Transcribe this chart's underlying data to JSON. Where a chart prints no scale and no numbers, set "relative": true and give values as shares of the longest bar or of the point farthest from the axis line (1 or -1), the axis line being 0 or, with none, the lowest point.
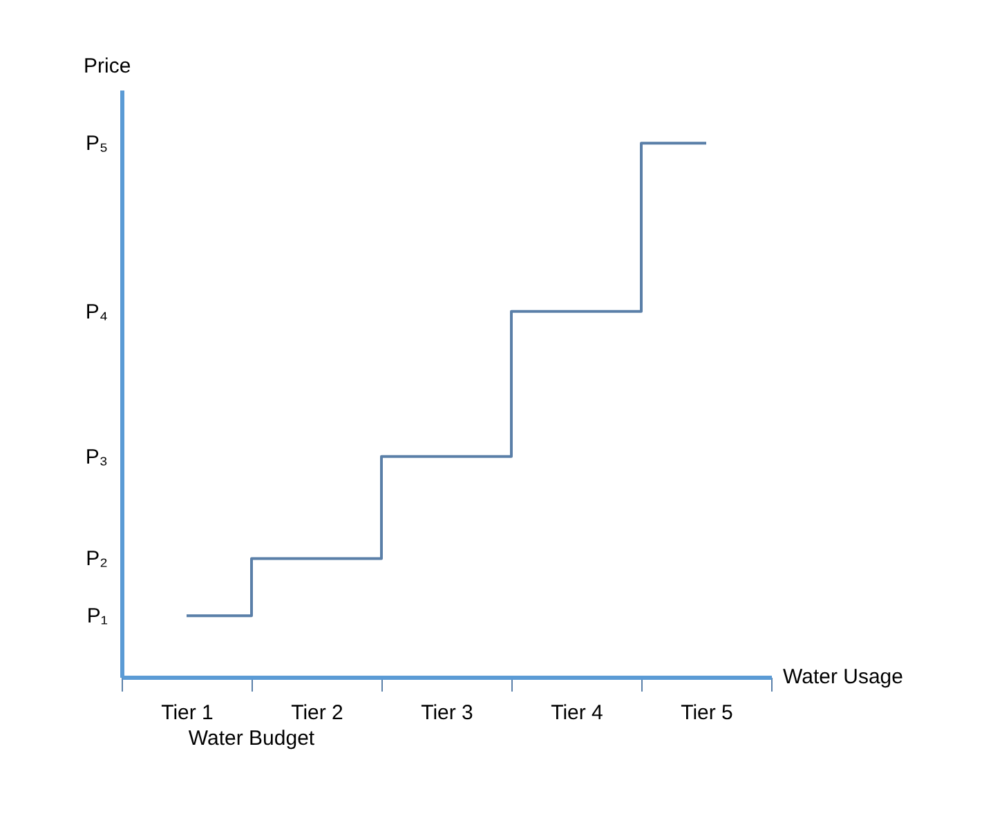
{
  "chart_data": {
    "type": "step",
    "relative": true,
    "xlabel": "Water Usage",
    "ylabel": "Price",
    "categories": [
      "Tier 1",
      "Tier 2",
      "Tier 3",
      "Tier 4",
      "Tier 5"
    ],
    "series": [
      {
        "color": "#5a7fa8",
        "values": [
          0.115,
          0.222,
          0.413,
          0.685,
          1
        ]
      }
    ],
    "annotations": [
      "P₁",
      "P₂",
      "P₃",
      "P₄",
      "P₅",
      "Water Budget"
    ],
    "grid": false
  }
}
